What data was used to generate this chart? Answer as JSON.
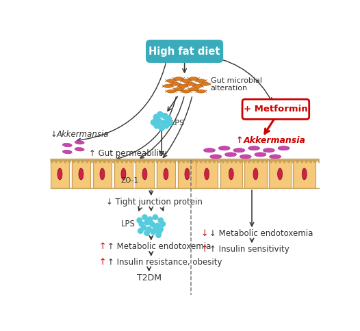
{
  "title": "High fat diet",
  "title_bg": "#3aabba",
  "title_text_color": "white",
  "metformin_label": "+ Metformin",
  "metformin_border": "#cc0000",
  "metformin_text": "#cc0000",
  "gut_microbial_text": "Gut microbial\nalteration",
  "arrow_color_black": "#333333",
  "arrow_color_red": "#cc0000",
  "lps_color": "#55ccdd",
  "bacteria_color": "#e07818",
  "akkermansia_magenta": "#cc44aa",
  "akkermansia_red_text": "#cc0000",
  "cell_fill": "#f5c87a",
  "cell_border": "#c8a055",
  "nucleus_color": "#cc2244",
  "dashed_color": "#777777",
  "text_color": "#333333",
  "red_text": "#cc0000"
}
